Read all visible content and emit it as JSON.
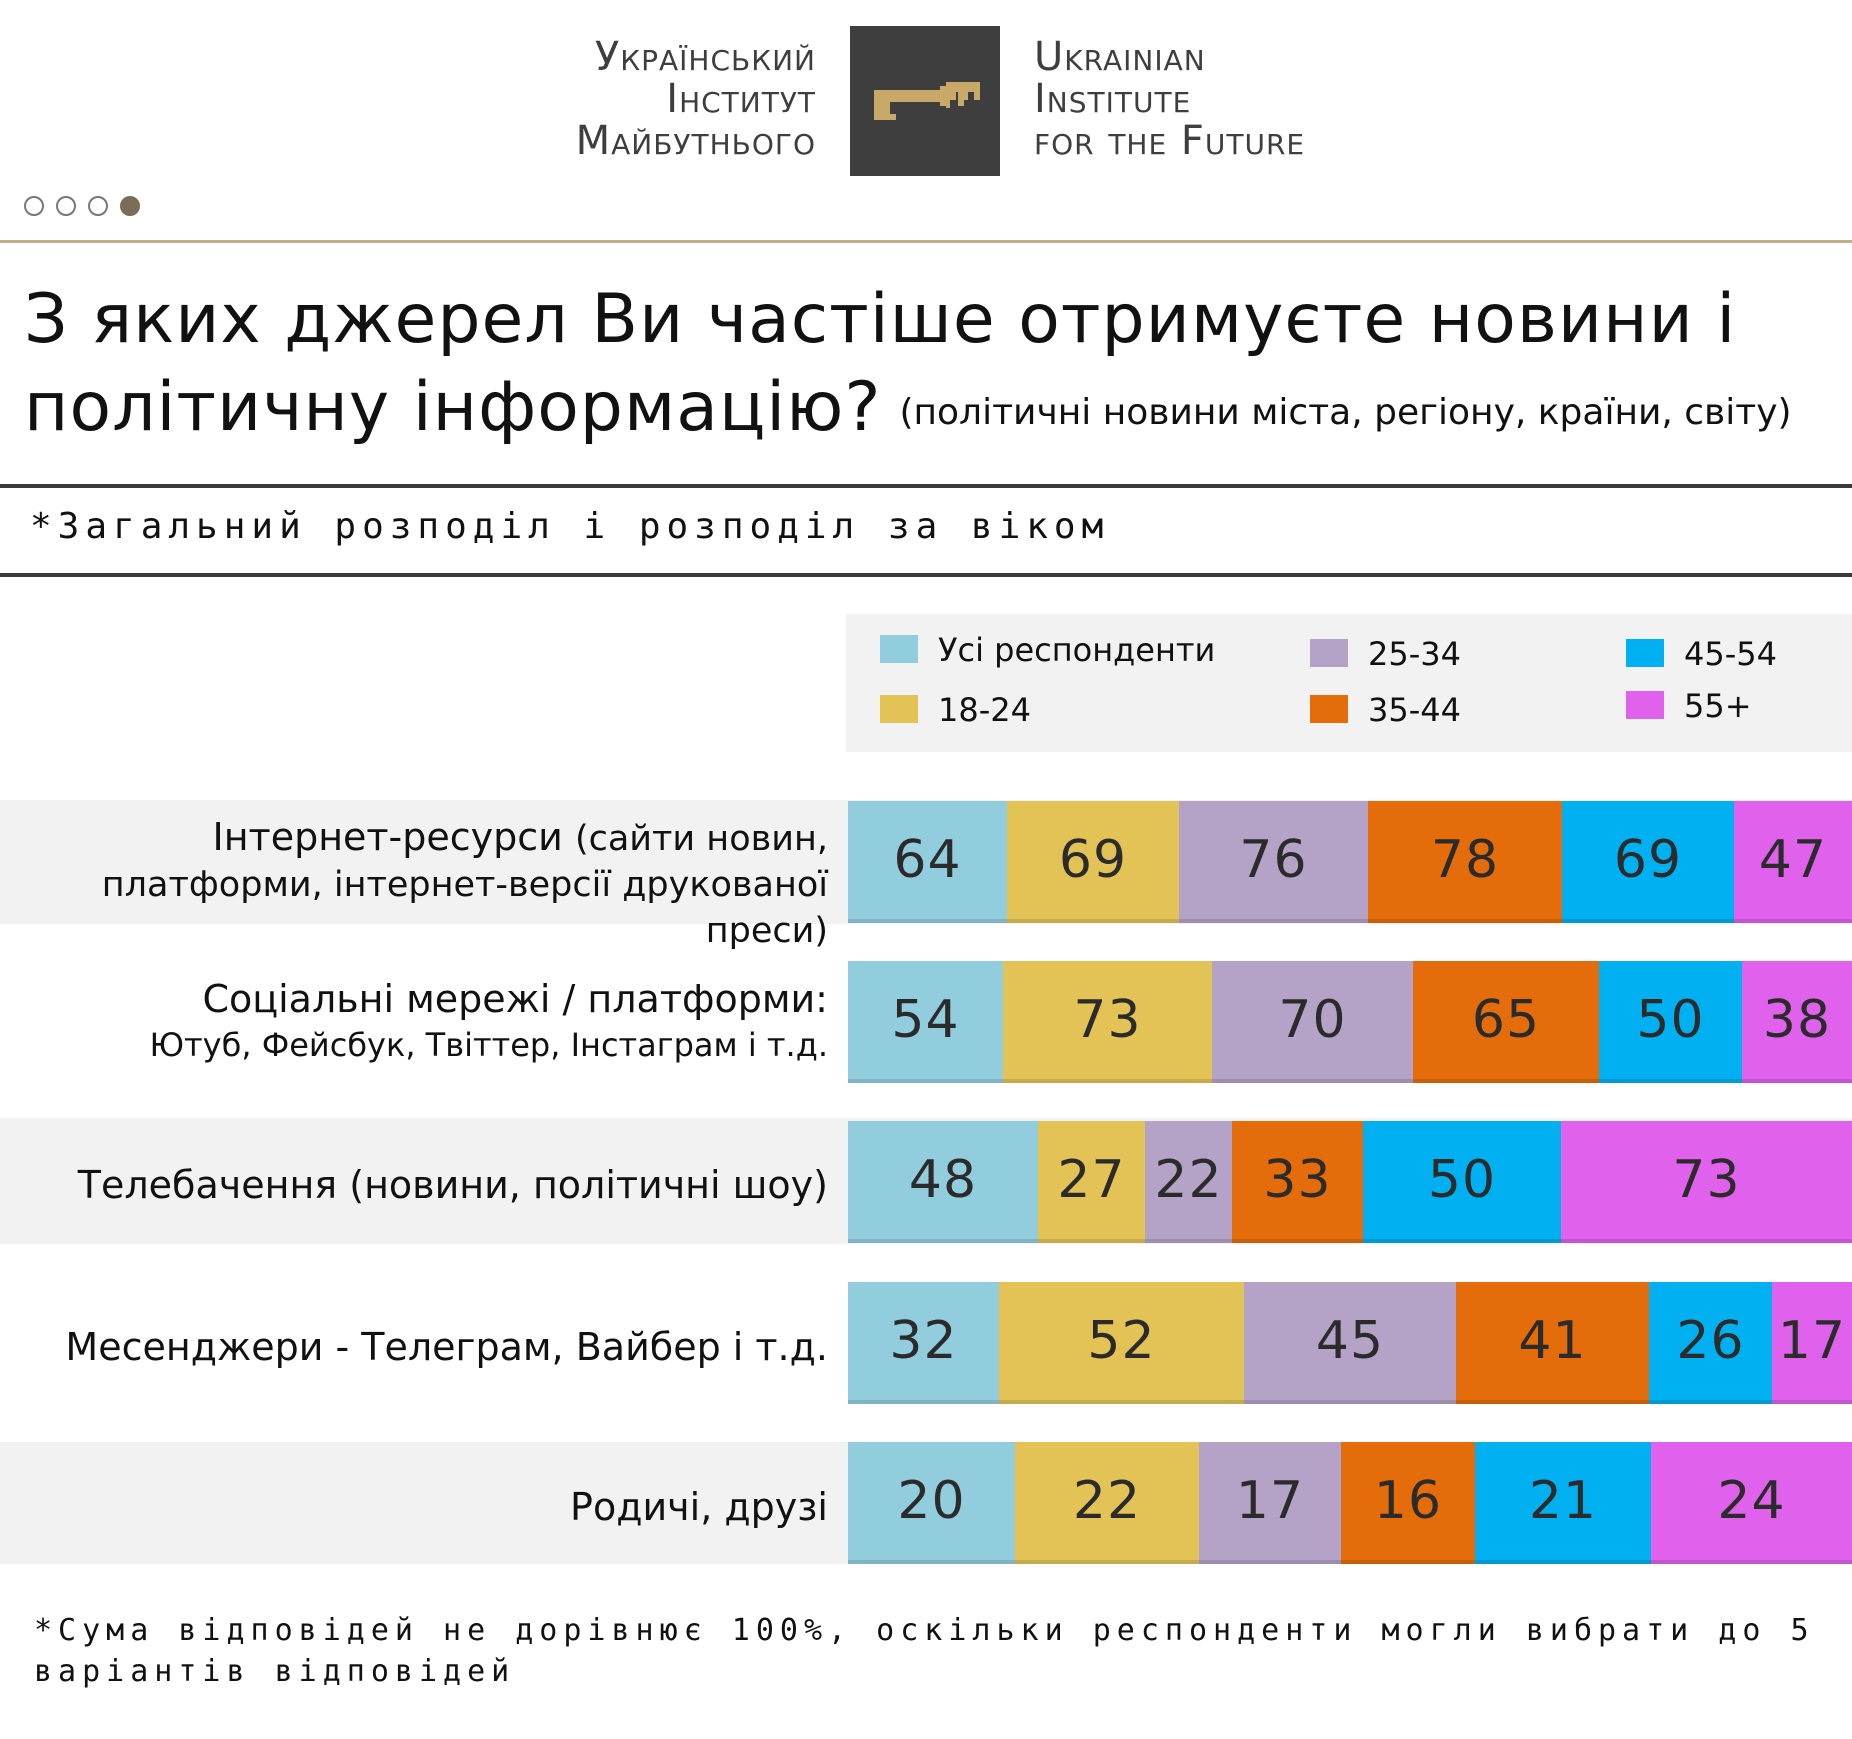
{
  "logo": {
    "left_lines": [
      "Український",
      "Інститут",
      "Майбутнього"
    ],
    "right_lines": [
      "Ukrainian",
      "Institute",
      "for the Future"
    ],
    "icon": "key-icon"
  },
  "pager": {
    "count": 4,
    "active": 4
  },
  "title": {
    "main": "З яких джерел Ви частіше отримуєте новини і політичну інформацію?",
    "sub": "(політичні новини міста, регіону, країни, світу)"
  },
  "subtitle": "*Загальний розподіл і розподіл за віком",
  "colors": {
    "all": "#92cddd",
    "g18_24": "#e3c256",
    "g25_34": "#b4a2c7",
    "g35_44": "#e46c0a",
    "g45_54": "#00b0f0",
    "g55": "#e061ec"
  },
  "chart_data": {
    "type": "bar",
    "stacked": true,
    "orientation": "horizontal",
    "title": "З яких джерел Ви частіше отримуєте новини і політичну інформацію?",
    "legend": [
      "Усі респонденти",
      "18-24",
      "25-34",
      "35-44",
      "45-54",
      "55+"
    ],
    "categories": [
      {
        "label": "Інтернет-ресурси",
        "label_paren": "(сайти новин,",
        "label_second": "платформи, інтернет-версії друкованої преси)"
      },
      {
        "label": "Соціальні мережі / платформи:",
        "label_paren": "",
        "label_second": "Ютуб, Фейсбук, Твіттер, Інстаграм і т.д."
      },
      {
        "label": "Телебачення",
        "label_paren": "(новини, політичні шоу)",
        "label_second": ""
      },
      {
        "label": "Месенджери - Телеграм, Вайбер і т.д.",
        "label_paren": "",
        "label_second": ""
      },
      {
        "label": "Родичі, друзі",
        "label_paren": "",
        "label_second": ""
      }
    ],
    "series": [
      {
        "name": "Усі респонденти",
        "values": [
          64,
          54,
          48,
          32,
          20
        ]
      },
      {
        "name": "18-24",
        "values": [
          69,
          73,
          27,
          52,
          22
        ]
      },
      {
        "name": "25-34",
        "values": [
          76,
          70,
          22,
          45,
          17
        ]
      },
      {
        "name": "35-44",
        "values": [
          78,
          65,
          33,
          41,
          16
        ]
      },
      {
        "name": "45-54",
        "values": [
          69,
          50,
          50,
          26,
          21
        ]
      },
      {
        "name": "55+",
        "values": [
          47,
          38,
          73,
          17,
          24
        ]
      }
    ],
    "xlabel": "",
    "ylabel": "",
    "unit": "%"
  },
  "footnote": "*Сума відповідей не дорівнює 100%, оскільки респонденти могли вибрати до 5 варіантів відповідей"
}
